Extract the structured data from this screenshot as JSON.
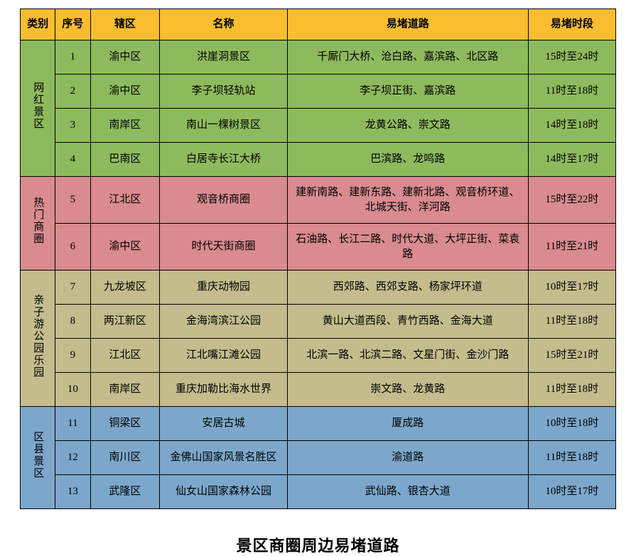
{
  "colors": {
    "header_bg": "#f9bd2f",
    "group_bg": [
      "#8eba5e",
      "#d98b8f",
      "#c4bc8d",
      "#7ca7cb"
    ]
  },
  "columns": [
    "类别",
    "序号",
    "辖区",
    "名称",
    "易堵道路",
    "易堵时段"
  ],
  "groups": [
    {
      "category": "网红景区",
      "rows": [
        {
          "idx": "1",
          "area": "渝中区",
          "name": "洪崖洞景区",
          "road": "千厮门大桥、沧白路、嘉滨路、北区路",
          "time": "15时至24时"
        },
        {
          "idx": "2",
          "area": "渝中区",
          "name": "李子坝轻轨站",
          "road": "李子坝正街、嘉滨路",
          "time": "11时至18时"
        },
        {
          "idx": "3",
          "area": "南岸区",
          "name": "南山一棵树景区",
          "road": "龙黄公路、崇文路",
          "time": "14时至18时"
        },
        {
          "idx": "4",
          "area": "巴南区",
          "name": "白居寺长江大桥",
          "road": "巴滨路、龙鸣路",
          "time": "14时至17时"
        }
      ]
    },
    {
      "category": "热门商圈",
      "rows": [
        {
          "idx": "5",
          "area": "江北区",
          "name": "观音桥商圈",
          "road": "建新南路、建新东路、建新北路、观音桥环道、北城天街、洋河路",
          "time": "15时至22时"
        },
        {
          "idx": "6",
          "area": "渝中区",
          "name": "时代天街商圈",
          "road": "石油路、长江二路、时代大道、大坪正街、菜袁路",
          "time": "11时至21时"
        }
      ]
    },
    {
      "category": "亲子游公园乐园",
      "rows": [
        {
          "idx": "7",
          "area": "九龙坡区",
          "name": "重庆动物园",
          "road": "西郊路、西郊支路、杨家坪环道",
          "time": "10时至17时"
        },
        {
          "idx": "8",
          "area": "两江新区",
          "name": "金海湾滨江公园",
          "road": "黄山大道西段、青竹西路、金海大道",
          "time": "11时至18时"
        },
        {
          "idx": "9",
          "area": "江北区",
          "name": "江北嘴江滩公园",
          "road": "北滨一路、北滨二路、文星门街、金沙门路",
          "time": "15时至21时"
        },
        {
          "idx": "10",
          "area": "南岸区",
          "name": "重庆加勒比海水世界",
          "road": "崇文路、龙黄路",
          "time": "11时至18时"
        }
      ]
    },
    {
      "category": "区县景区",
      "rows": [
        {
          "idx": "11",
          "area": "铜梁区",
          "name": "安居古城",
          "road": "厦成路",
          "time": "10时至18时"
        },
        {
          "idx": "12",
          "area": "南川区",
          "name": "金佛山国家风景名胜区",
          "road": "渝道路",
          "time": "11时至18时"
        },
        {
          "idx": "13",
          "area": "武隆区",
          "name": "仙女山国家森林公园",
          "road": "武仙路、银杏大道",
          "time": "10时至17时"
        }
      ]
    }
  ],
  "caption": "景区商圈周边易堵道路"
}
